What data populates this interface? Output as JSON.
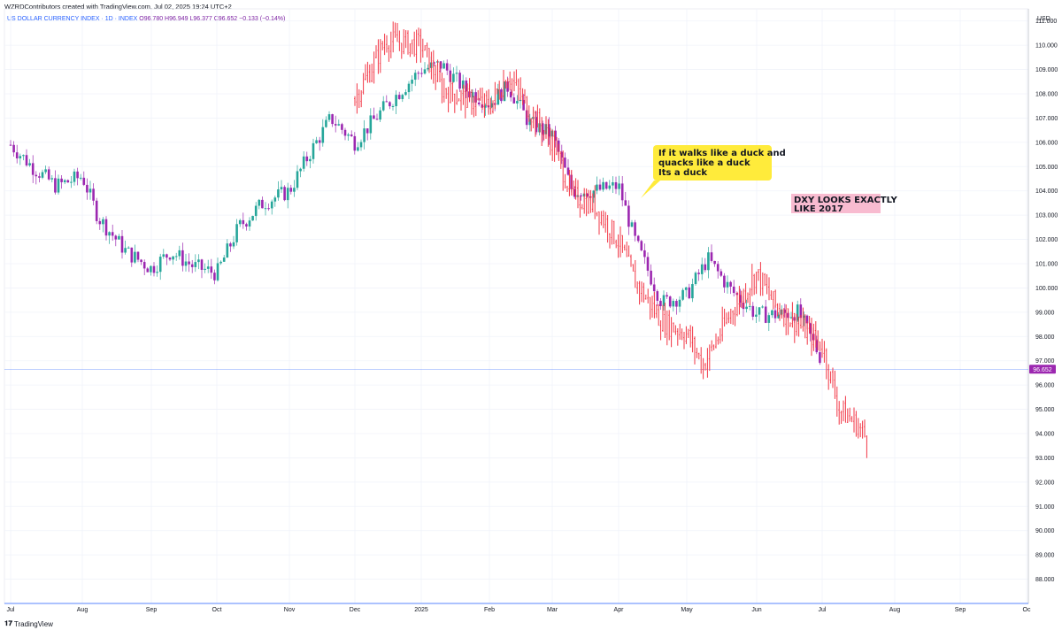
{
  "header": {
    "credit": "WZRDContributors created with TradingView.com, Jul 02, 2025 19:24 UTC+2",
    "symbol": "US DOLLAR CURRENCY INDEX · 1D · INDEX",
    "ohlc": "O96.780  H96.949  L96.377  C96.652",
    "change": "−0.133 (−0.14%)",
    "currency": "USD"
  },
  "footer": {
    "logo_text": "TradingView"
  },
  "annotations": {
    "duck_lines": [
      "If it walks like a duck and",
      "quacks like a duck",
      "Its a duck"
    ],
    "dxy_lines": [
      "DXY LOOKS EXACTLY",
      "LIKE 2017"
    ]
  },
  "colors": {
    "up_candle": "#26a69a",
    "down_candle_2024": "#9c27b0",
    "overlay_line": "#f23645",
    "price_tag": "#9c27b0",
    "duck_callout": "#ffeb3b",
    "dxy_box": "#f8bbd0"
  },
  "chart_data": {
    "type": "line",
    "title": "US DOLLAR CURRENCY INDEX · 1D · INDEX",
    "ylim": [
      87,
      111.5
    ],
    "y_ticks": [
      "111.000",
      "110.000",
      "109.000",
      "108.000",
      "107.000",
      "106.000",
      "105.000",
      "104.000",
      "103.000",
      "102.000",
      "101.000",
      "100.000",
      "99.000",
      "98.000",
      "97.000",
      "96.000",
      "95.000",
      "94.000",
      "93.000",
      "92.000",
      "91.000",
      "90.000",
      "89.000",
      "88.000"
    ],
    "x_ticks": [
      "Jul",
      "Aug",
      "Sep",
      "Oct",
      "Nov",
      "Dec",
      "2025",
      "Feb",
      "Mar",
      "Apr",
      "May",
      "Jun",
      "Jul",
      "Aug",
      "Sep",
      "Oc"
    ],
    "last_price": "96.652",
    "last_price_value": 96.652,
    "series": [
      {
        "kind": "candles",
        "points": [
          [
            "Jul",
            105.9
          ],
          [
            "Jul 10",
            105.0
          ],
          [
            "Jul 20",
            104.2
          ],
          [
            "Aug",
            104.6
          ],
          [
            "Aug 8",
            102.9
          ],
          [
            "Aug 20",
            101.5
          ],
          [
            "Sep",
            100.8
          ],
          [
            "Sep 10",
            101.5
          ],
          [
            "Sep 20",
            100.9
          ],
          [
            "Oct",
            100.6
          ],
          [
            "Oct 10",
            102.5
          ],
          [
            "Oct 20",
            103.5
          ],
          [
            "Nov",
            104.0
          ],
          [
            "Nov 10",
            105.5
          ],
          [
            "Nov 20",
            107.0
          ],
          [
            "Dec",
            106.0
          ],
          [
            "Dec 15",
            107.5
          ],
          [
            "2025",
            109.0
          ],
          [
            "Jan 10",
            109.2
          ],
          [
            "Jan 20",
            108.2
          ],
          [
            "Feb",
            107.6
          ],
          [
            "Feb 10",
            108.3
          ],
          [
            "Feb 20",
            106.8
          ],
          [
            "Mar",
            106.3
          ],
          [
            "Mar 10",
            104.0
          ],
          [
            "Mar 20",
            104.0
          ],
          [
            "Apr",
            104.2
          ],
          [
            "Apr 8",
            102.0
          ],
          [
            "Apr 20",
            99.4
          ],
          [
            "May",
            99.7
          ],
          [
            "May 10",
            101.2
          ],
          [
            "May 20",
            99.9
          ],
          [
            "Jun",
            98.9
          ],
          [
            "Jun 10",
            98.9
          ],
          [
            "Jun 20",
            99.0
          ],
          [
            "Jul",
            97.0
          ]
        ]
      },
      {
        "kind": "overlay",
        "points": [
          [
            "Dec",
            107.8
          ],
          [
            "Dec 15",
            110.2
          ],
          [
            "2025",
            110.0
          ],
          [
            "Jan 10",
            108.2
          ],
          [
            "Jan 20",
            107.8
          ],
          [
            "Feb",
            107.5
          ],
          [
            "Feb 10",
            108.8
          ],
          [
            "Feb 20",
            107.3
          ],
          [
            "Mar",
            106.0
          ],
          [
            "Mar 10",
            103.8
          ],
          [
            "Mar 20",
            103.4
          ],
          [
            "Apr",
            101.9
          ],
          [
            "Apr 8",
            100.3
          ],
          [
            "Apr 20",
            98.6
          ],
          [
            "May",
            98.1
          ],
          [
            "May 8",
            96.8
          ],
          [
            "May 20",
            99.0
          ],
          [
            "Jun",
            100.6
          ],
          [
            "Jun 10",
            99.2
          ],
          [
            "Jun 20",
            98.5
          ],
          [
            "Jul",
            97.6
          ],
          [
            "Jul 8",
            95.0
          ],
          [
            "Jul 15",
            94.4
          ],
          [
            "Jul 20",
            93.7
          ]
        ]
      }
    ]
  }
}
